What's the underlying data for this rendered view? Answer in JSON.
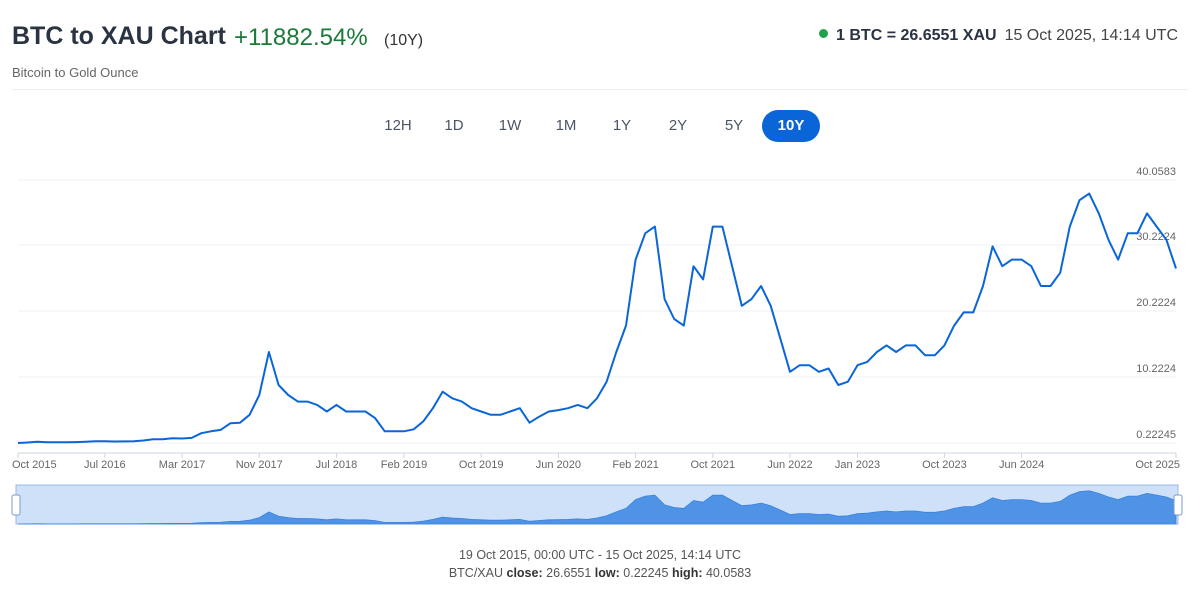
{
  "header": {
    "title": "BTC to XAU Chart",
    "change": "+11882.54%",
    "period": "(10Y)",
    "subtitle": "Bitcoin to Gold Ounce",
    "rate": "1 BTC = 26.6551 XAU",
    "timestamp": "15 Oct 2025, 14:14 UTC"
  },
  "ranges": [
    "12H",
    "1D",
    "1W",
    "1M",
    "1Y",
    "2Y",
    "5Y",
    "10Y"
  ],
  "active_range": 7,
  "footer": {
    "span": "19 Oct 2015, 00:00 UTC - 15 Oct 2025, 14:14 UTC",
    "pair": "BTC/XAU",
    "close_label": "close:",
    "close": "26.6551",
    "low_label": "low:",
    "low": "0.22245",
    "high_label": "high:",
    "high": "40.0583"
  },
  "chart_data": {
    "type": "line",
    "color": "#0a66d8",
    "grid": true,
    "x": [
      "2015-10",
      "2015-11",
      "2015-12",
      "2016-01",
      "2016-02",
      "2016-03",
      "2016-04",
      "2016-05",
      "2016-06",
      "2016-07",
      "2016-08",
      "2016-09",
      "2016-10",
      "2016-11",
      "2016-12",
      "2017-01",
      "2017-02",
      "2017-03",
      "2017-04",
      "2017-05",
      "2017-06",
      "2017-07",
      "2017-08",
      "2017-09",
      "2017-10",
      "2017-11",
      "2017-12",
      "2018-01",
      "2018-02",
      "2018-03",
      "2018-04",
      "2018-05",
      "2018-06",
      "2018-07",
      "2018-08",
      "2018-09",
      "2018-10",
      "2018-11",
      "2018-12",
      "2019-01",
      "2019-02",
      "2019-03",
      "2019-04",
      "2019-05",
      "2019-06",
      "2019-07",
      "2019-08",
      "2019-09",
      "2019-10",
      "2019-11",
      "2019-12",
      "2020-01",
      "2020-02",
      "2020-03",
      "2020-04",
      "2020-05",
      "2020-06",
      "2020-07",
      "2020-08",
      "2020-09",
      "2020-10",
      "2020-11",
      "2020-12",
      "2021-01",
      "2021-02",
      "2021-03",
      "2021-04",
      "2021-05",
      "2021-06",
      "2021-07",
      "2021-08",
      "2021-09",
      "2021-10",
      "2021-11",
      "2021-12",
      "2022-01",
      "2022-02",
      "2022-03",
      "2022-04",
      "2022-05",
      "2022-06",
      "2022-07",
      "2022-08",
      "2022-09",
      "2022-10",
      "2022-11",
      "2022-12",
      "2023-01",
      "2023-02",
      "2023-03",
      "2023-04",
      "2023-05",
      "2023-06",
      "2023-07",
      "2023-08",
      "2023-09",
      "2023-10",
      "2023-11",
      "2023-12",
      "2024-01",
      "2024-02",
      "2024-03",
      "2024-04",
      "2024-05",
      "2024-06",
      "2024-07",
      "2024-08",
      "2024-09",
      "2024-10",
      "2024-11",
      "2024-12",
      "2025-01",
      "2025-02",
      "2025-03",
      "2025-04",
      "2025-05",
      "2025-06",
      "2025-07",
      "2025-08",
      "2025-09",
      "2025-10"
    ],
    "values": [
      0.22,
      0.3,
      0.4,
      0.35,
      0.35,
      0.33,
      0.36,
      0.42,
      0.5,
      0.5,
      0.45,
      0.46,
      0.5,
      0.6,
      0.8,
      0.8,
      0.95,
      0.9,
      1.0,
      1.7,
      2.0,
      2.2,
      3.2,
      3.3,
      4.5,
      7.5,
      14,
      9,
      7.5,
      6.5,
      6.5,
      6,
      5,
      6,
      5,
      5,
      5,
      4,
      2,
      2,
      2,
      2.3,
      3.5,
      5.5,
      8,
      7,
      6.5,
      5.5,
      5,
      4.5,
      4.5,
      5,
      5.5,
      3.3,
      4.2,
      5,
      5.2,
      5.5,
      6,
      5.5,
      7,
      9.5,
      14,
      18,
      28,
      32,
      33,
      22,
      19,
      18,
      27,
      25,
      33,
      33,
      27,
      21,
      22,
      24,
      21,
      16,
      11,
      12,
      12,
      11,
      11.5,
      9,
      9.5,
      12,
      12.5,
      14,
      15,
      14,
      15,
      15,
      13.5,
      13.5,
      15,
      18,
      20,
      20,
      24,
      30,
      27,
      28,
      28,
      27,
      24,
      24,
      26,
      33,
      37,
      38,
      35,
      31,
      28,
      32,
      32,
      35,
      33,
      31,
      26.6551
    ],
    "ylim": [
      0.22245,
      40.0583
    ],
    "yticks": [
      0.22245,
      10.2224,
      20.2224,
      30.2224,
      40.0583
    ],
    "xticks": [
      {
        "value": "2015-10",
        "label": "Oct 2015"
      },
      {
        "value": "2016-07",
        "label": "Jul 2016"
      },
      {
        "value": "2017-03",
        "label": "Mar 2017"
      },
      {
        "value": "2017-11",
        "label": "Nov 2017"
      },
      {
        "value": "2018-07",
        "label": "Jul 2018"
      },
      {
        "value": "2019-02",
        "label": "Feb 2019"
      },
      {
        "value": "2019-10",
        "label": "Oct 2019"
      },
      {
        "value": "2020-06",
        "label": "Jun 2020"
      },
      {
        "value": "2021-02",
        "label": "Feb 2021"
      },
      {
        "value": "2021-10",
        "label": "Oct 2021"
      },
      {
        "value": "2022-06",
        "label": "Jun 2022"
      },
      {
        "value": "2023-01",
        "label": "Jan 2023"
      },
      {
        "value": "2023-10",
        "label": "Oct 2023"
      },
      {
        "value": "2024-06",
        "label": "Jun 2024"
      },
      {
        "value": "2025-10",
        "label": "Oct 2025"
      }
    ]
  }
}
